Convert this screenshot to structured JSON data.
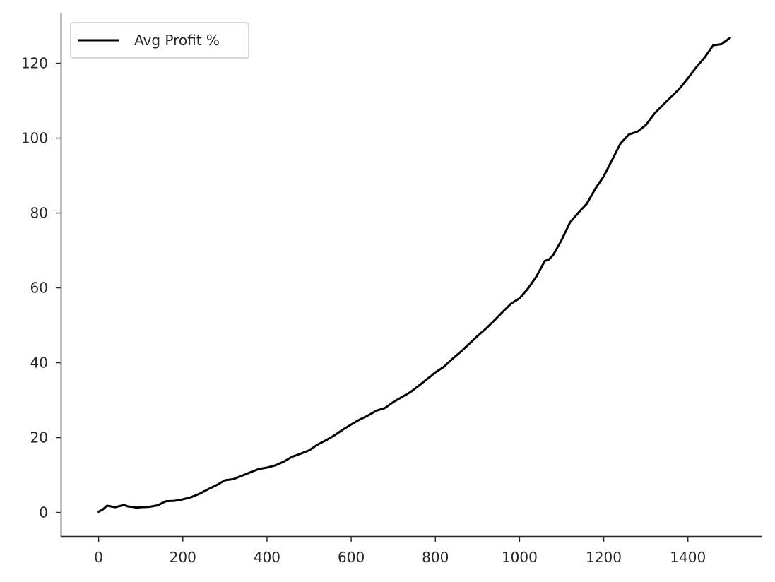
{
  "chart_data": {
    "type": "line",
    "title": "",
    "xlabel": "",
    "ylabel": "",
    "xlim": [
      -90,
      1575
    ],
    "ylim": [
      -6.5,
      133.5
    ],
    "xticks": [
      0,
      200,
      400,
      600,
      800,
      1000,
      1200,
      1400
    ],
    "yticks": [
      0,
      20,
      40,
      60,
      80,
      100,
      120
    ],
    "xtick_labels": [
      "0",
      "200",
      "400",
      "600",
      "800",
      "1000",
      "1200",
      "1400"
    ],
    "ytick_labels": [
      "0",
      "20",
      "40",
      "60",
      "80",
      "100",
      "120"
    ],
    "grid": false,
    "legend_position": "upper-left",
    "series": [
      {
        "name": "Avg Profit %",
        "color": "#000000",
        "x": [
          0,
          10,
          20,
          30,
          40,
          50,
          60,
          70,
          80,
          90,
          100,
          120,
          140,
          160,
          180,
          200,
          220,
          240,
          260,
          280,
          300,
          320,
          340,
          360,
          380,
          400,
          420,
          440,
          460,
          480,
          500,
          520,
          540,
          560,
          580,
          600,
          620,
          640,
          660,
          680,
          700,
          720,
          740,
          760,
          780,
          800,
          820,
          840,
          860,
          880,
          900,
          920,
          940,
          960,
          980,
          1000,
          1020,
          1040,
          1060,
          1070,
          1080,
          1100,
          1120,
          1140,
          1160,
          1180,
          1200,
          1220,
          1240,
          1260,
          1280,
          1300,
          1320,
          1340,
          1360,
          1380,
          1400,
          1420,
          1440,
          1460,
          1480,
          1500
        ],
        "values": [
          0.2,
          0.8,
          1.8,
          1.6,
          1.4,
          1.7,
          2.0,
          1.6,
          1.5,
          1.3,
          1.4,
          1.5,
          1.9,
          3.0,
          3.1,
          3.5,
          4.1,
          5.0,
          6.2,
          7.3,
          8.6,
          8.9,
          9.8,
          10.7,
          11.6,
          12.0,
          12.6,
          13.6,
          14.9,
          15.7,
          16.6,
          18.1,
          19.3,
          20.6,
          22.1,
          23.5,
          24.8,
          25.9,
          27.2,
          27.9,
          29.5,
          30.8,
          32.1,
          33.8,
          35.6,
          37.4,
          38.9,
          41.0,
          42.9,
          45.0,
          47.1,
          49.1,
          51.3,
          53.6,
          55.8,
          57.2,
          59.8,
          63.0,
          67.2,
          67.6,
          68.8,
          72.8,
          77.5,
          80.1,
          82.5,
          86.5,
          89.8,
          94.2,
          98.6,
          101.0,
          101.7,
          103.5,
          106.5,
          108.8,
          111.0,
          113.2,
          116.0,
          119.0,
          121.6,
          124.8,
          125.1,
          126.8
        ]
      }
    ]
  }
}
